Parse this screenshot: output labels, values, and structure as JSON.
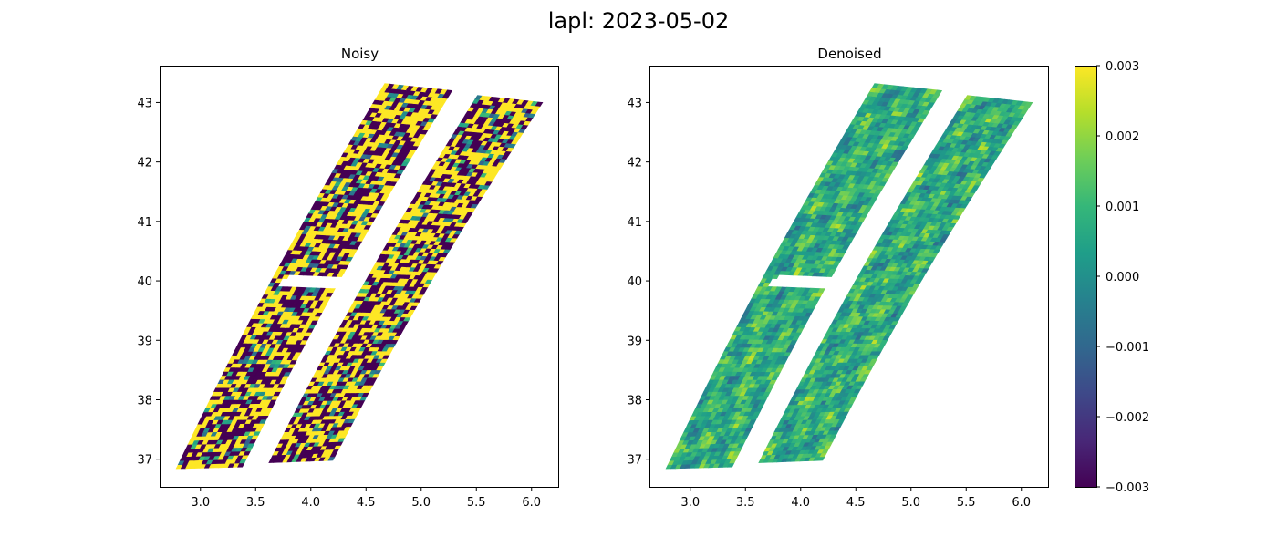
{
  "figure": {
    "title": "lapl: 2023-05-02"
  },
  "colors": {
    "viridis": [
      "#440154",
      "#482878",
      "#3e4989",
      "#31688e",
      "#26828e",
      "#1f9e89",
      "#35b779",
      "#6ece58",
      "#b5de2b",
      "#fde725"
    ]
  },
  "chart_data": [
    {
      "type": "heatmap",
      "title": "Noisy",
      "xlabel": "",
      "ylabel": "",
      "xlim": [
        2.63,
        6.25
      ],
      "ylim": [
        36.52,
        43.62
      ],
      "x_ticks": [
        3.0,
        3.5,
        4.0,
        4.5,
        5.0,
        5.5,
        6.0
      ],
      "x_tick_labels": [
        "3.0",
        "3.5",
        "4.0",
        "4.5",
        "5.0",
        "5.5",
        "6.0"
      ],
      "y_ticks": [
        37,
        38,
        39,
        40,
        41,
        42,
        43
      ],
      "y_tick_labels": [
        "37",
        "38",
        "39",
        "40",
        "41",
        "42",
        "43"
      ],
      "colormap": "viridis",
      "vmin": -0.003,
      "vmax": 0.003,
      "field": "noisy",
      "swaths": [
        {
          "name": "left swath",
          "bottom": [
            [
              2.78,
              36.84
            ],
            [
              3.38,
              36.87
            ]
          ],
          "top": [
            [
              4.67,
              43.32
            ],
            [
              5.28,
              43.2
            ]
          ]
        },
        {
          "name": "right swath",
          "bottom": [
            [
              3.62,
              36.94
            ],
            [
              4.2,
              36.98
            ]
          ],
          "top": [
            [
              5.51,
              43.12
            ],
            [
              6.1,
              43.0
            ]
          ]
        }
      ],
      "gap": {
        "x": [
          3.72,
          4.35
        ],
        "y": [
          39.88,
          40.07
        ]
      }
    },
    {
      "type": "heatmap",
      "title": "Denoised",
      "xlabel": "",
      "ylabel": "",
      "xlim": [
        2.63,
        6.25
      ],
      "ylim": [
        36.52,
        43.62
      ],
      "x_ticks": [
        3.0,
        3.5,
        4.0,
        4.5,
        5.0,
        5.5,
        6.0
      ],
      "x_tick_labels": [
        "3.0",
        "3.5",
        "4.0",
        "4.5",
        "5.0",
        "5.5",
        "6.0"
      ],
      "y_ticks": [
        37,
        38,
        39,
        40,
        41,
        42,
        43
      ],
      "y_tick_labels": [
        "37",
        "38",
        "39",
        "40",
        "41",
        "42",
        "43"
      ],
      "colormap": "viridis",
      "vmin": -0.003,
      "vmax": 0.003,
      "field": "denoised",
      "swaths": [
        {
          "name": "left swath",
          "bottom": [
            [
              2.78,
              36.84
            ],
            [
              3.38,
              36.87
            ]
          ],
          "top": [
            [
              4.67,
              43.32
            ],
            [
              5.28,
              43.2
            ]
          ]
        },
        {
          "name": "right swath",
          "bottom": [
            [
              3.62,
              36.94
            ],
            [
              4.2,
              36.98
            ]
          ],
          "top": [
            [
              5.51,
              43.12
            ],
            [
              6.1,
              43.0
            ]
          ]
        }
      ],
      "gap": {
        "x": [
          3.72,
          4.35
        ],
        "y": [
          39.88,
          40.07
        ]
      }
    }
  ],
  "colorbar": {
    "min": -0.003,
    "max": 0.003,
    "ticks": [
      0.003,
      0.002,
      0.001,
      0.0,
      -0.001,
      -0.002,
      -0.003
    ],
    "tick_labels": [
      "0.003",
      "0.002",
      "0.001",
      "0.000",
      "−0.001",
      "−0.002",
      "−0.003"
    ]
  }
}
